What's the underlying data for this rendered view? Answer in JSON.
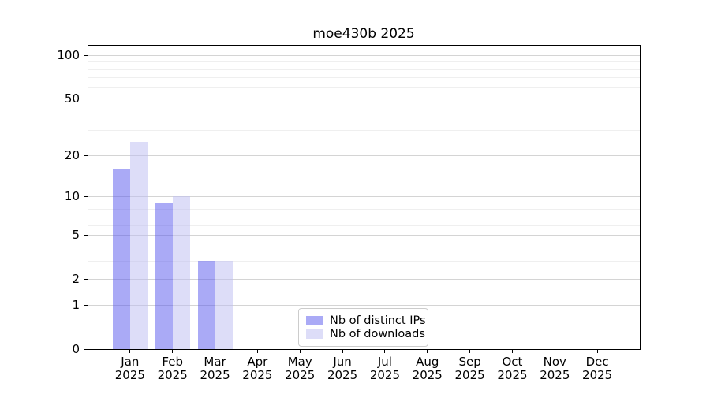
{
  "chart_data": {
    "type": "bar",
    "title": "moe430b 2025",
    "categories": [
      "Jan",
      "Feb",
      "Mar",
      "Apr",
      "May",
      "Jun",
      "Jul",
      "Aug",
      "Sep",
      "Oct",
      "Nov",
      "Dec"
    ],
    "x_tick_second_line": "2025",
    "series": [
      {
        "name": "Nb of distinct IPs",
        "slug": "distinct-ips",
        "fill": "rgba(85,85,238,0.5)",
        "solid_equivalent": "#aaaaf6",
        "values": [
          16,
          9,
          3,
          0,
          0,
          0,
          0,
          0,
          0,
          0,
          0,
          0
        ]
      },
      {
        "name": "Nb of downloads",
        "slug": "downloads",
        "fill": "rgba(187,187,242,0.5)",
        "solid_equivalent": "#ddddf8",
        "values": [
          25,
          10,
          3,
          0,
          0,
          0,
          0,
          0,
          0,
          0,
          0,
          0
        ]
      }
    ],
    "y_axis": {
      "scale": "log1p",
      "range": [
        0,
        100
      ],
      "major_ticks": [
        0,
        1,
        2,
        5,
        10,
        20,
        50,
        100
      ],
      "minor_gridlines": [
        3,
        4,
        6,
        7,
        8,
        9,
        30,
        40,
        60,
        70,
        80,
        90
      ]
    },
    "legend": {
      "position": "lower-center-inside"
    },
    "grid": {
      "major_color": "#d4d4d4",
      "minor_color": "#efefef"
    }
  }
}
